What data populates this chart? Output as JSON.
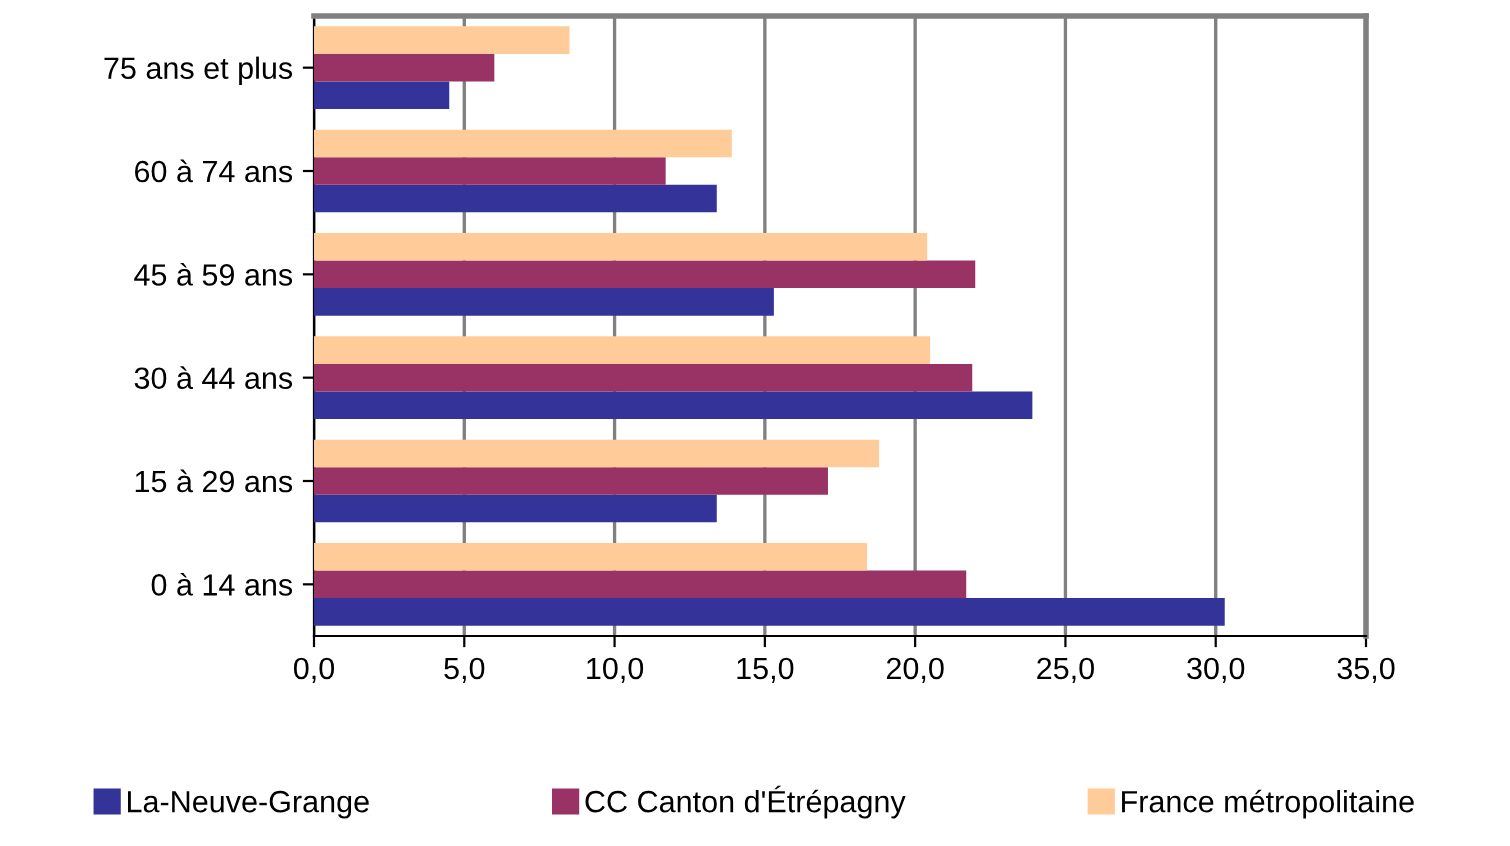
{
  "chart_data": {
    "type": "bar",
    "orientation": "horizontal",
    "categories": [
      "75 ans et plus",
      "60 à 74 ans",
      "45 à 59 ans",
      "30 à 44 ans",
      "15 à 29 ans",
      "0 à 14 ans"
    ],
    "series": [
      {
        "name": "La-Neuve-Grange",
        "color": "#333399",
        "values": [
          4.5,
          13.4,
          15.3,
          23.9,
          13.4,
          30.3
        ]
      },
      {
        "name": "CC Canton d'Étrépagny",
        "color": "#993366",
        "values": [
          6.0,
          11.7,
          22.0,
          21.9,
          17.1,
          21.7
        ]
      },
      {
        "name": "France métropolitaine",
        "color": "#ffcc99",
        "values": [
          8.5,
          13.9,
          20.4,
          20.5,
          18.8,
          18.4
        ]
      }
    ],
    "xlim": [
      0,
      35
    ],
    "xticks": [
      {
        "value": 0,
        "label": "0,0"
      },
      {
        "value": 5,
        "label": "5,0"
      },
      {
        "value": 10,
        "label": "10,0"
      },
      {
        "value": 15,
        "label": "15,0"
      },
      {
        "value": 20,
        "label": "20,0"
      },
      {
        "value": 25,
        "label": "25,0"
      },
      {
        "value": 30,
        "label": "30,0"
      },
      {
        "value": 35,
        "label": "35,0"
      }
    ],
    "grid": "x",
    "legend": "bottom"
  }
}
